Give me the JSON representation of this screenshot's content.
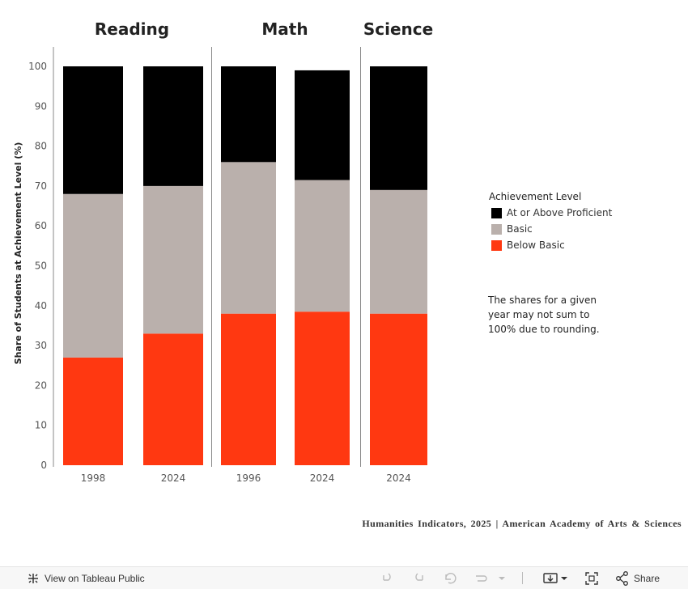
{
  "chart_data": {
    "type": "stacked-bar",
    "panels": [
      {
        "title": "Reading",
        "categories": [
          "1998",
          "2024"
        ]
      },
      {
        "title": "Math",
        "categories": [
          "1996",
          "2024"
        ]
      },
      {
        "title": "Science",
        "categories": [
          "2024"
        ]
      }
    ],
    "series": [
      {
        "name": "Below Basic",
        "color": "#ff3811",
        "values": [
          27,
          33,
          38,
          38.5,
          38
        ]
      },
      {
        "name": "Basic",
        "color": "#bab0ac",
        "values": [
          41,
          37,
          38,
          33,
          31
        ]
      },
      {
        "name": "At or Above Proficient",
        "color": "#000000",
        "values": [
          32,
          30,
          24,
          27.5,
          31
        ]
      }
    ],
    "ylabel": "Share of Students at Achievement Level (%)",
    "ylim": [
      0,
      100
    ],
    "yticks": [
      "0",
      "10",
      "20",
      "30",
      "40",
      "50",
      "60",
      "70",
      "80",
      "90",
      "100"
    ]
  },
  "legend": {
    "title": "Achievement Level",
    "items": [
      {
        "label": "At or Above Proficient",
        "color": "#000000"
      },
      {
        "label": "Basic",
        "color": "#bab0ac"
      },
      {
        "label": "Below Basic",
        "color": "#ff3811"
      }
    ]
  },
  "note": "The shares for a given year may not sum to 100% due to rounding.",
  "source": "Humanities Indicators, 2025 | American Academy of Arts & Sciences",
  "toolbar": {
    "view_label": "View on Tableau Public",
    "share_label": "Share"
  }
}
